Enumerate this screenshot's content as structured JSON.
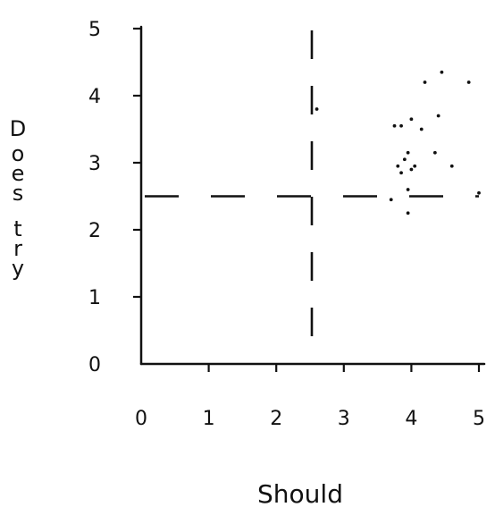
{
  "chart_data": {
    "type": "scatter",
    "title": "",
    "xlabel": "Should",
    "ylabel": "Does try",
    "xlim": [
      0,
      5
    ],
    "ylim": [
      0,
      5
    ],
    "xticks": [
      "0",
      "1",
      "2",
      "3",
      "4",
      "5"
    ],
    "yticks": [
      "0",
      "1",
      "2",
      "3",
      "4",
      "5"
    ],
    "grid": false,
    "reference_lines": {
      "x": 2.5,
      "y": 2.5,
      "style": "dashed"
    },
    "points": [
      {
        "x": 2.6,
        "y": 3.8
      },
      {
        "x": 3.7,
        "y": 2.45
      },
      {
        "x": 3.75,
        "y": 3.55
      },
      {
        "x": 3.8,
        "y": 2.95
      },
      {
        "x": 3.85,
        "y": 3.55
      },
      {
        "x": 3.85,
        "y": 2.85
      },
      {
        "x": 3.9,
        "y": 3.05
      },
      {
        "x": 3.95,
        "y": 3.15
      },
      {
        "x": 3.95,
        "y": 2.6
      },
      {
        "x": 3.95,
        "y": 2.25
      },
      {
        "x": 4.0,
        "y": 3.65
      },
      {
        "x": 4.0,
        "y": 2.9
      },
      {
        "x": 4.05,
        "y": 2.95
      },
      {
        "x": 4.15,
        "y": 3.5
      },
      {
        "x": 4.2,
        "y": 4.2
      },
      {
        "x": 4.35,
        "y": 3.15
      },
      {
        "x": 4.4,
        "y": 3.7
      },
      {
        "x": 4.45,
        "y": 4.35
      },
      {
        "x": 4.6,
        "y": 2.95
      },
      {
        "x": 4.85,
        "y": 4.2
      },
      {
        "x": 5.0,
        "y": 2.55
      }
    ]
  }
}
